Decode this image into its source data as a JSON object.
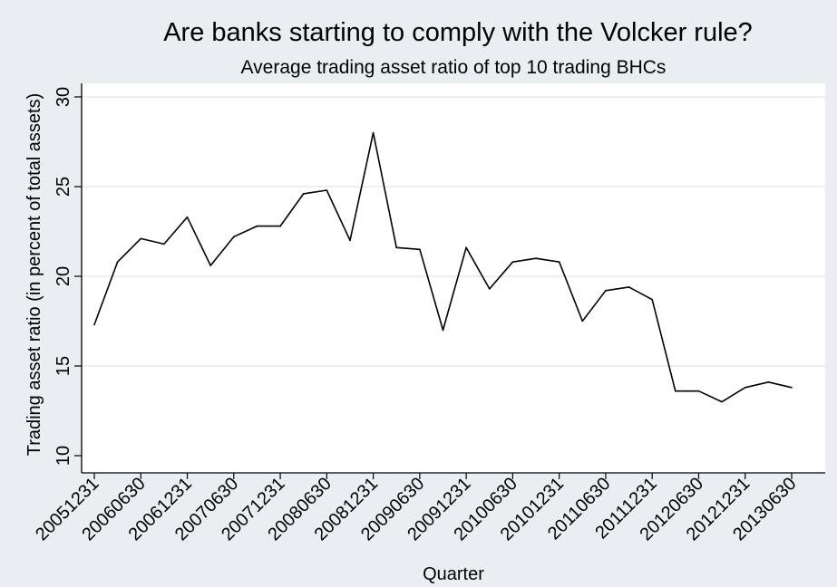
{
  "chart_data": {
    "type": "line",
    "title": "Are banks starting to comply with the Volcker rule?",
    "subtitle": "Average trading asset ratio of top 10 trading BHCs",
    "xlabel": "Quarter",
    "ylabel": "Trading asset ratio (in percent of total assets)",
    "ylim": [
      10,
      30
    ],
    "yticks": [
      "10",
      "15",
      "20",
      "25",
      "30"
    ],
    "grid": true,
    "x_tick_labels": [
      "20051231",
      "20060630",
      "20061231",
      "20070630",
      "20071231",
      "20080630",
      "20081231",
      "20090630",
      "20091231",
      "20100630",
      "20101231",
      "20110630",
      "20111231",
      "20120630",
      "20121231",
      "20130630"
    ],
    "x": [
      "20051231",
      "20060331",
      "20060630",
      "20060930",
      "20061231",
      "20070331",
      "20070630",
      "20070930",
      "20071231",
      "20080331",
      "20080630",
      "20080930",
      "20081231",
      "20090331",
      "20090630",
      "20090930",
      "20091231",
      "20100331",
      "20100630",
      "20100930",
      "20101231",
      "20110331",
      "20110630",
      "20110930",
      "20111231",
      "20120331",
      "20120630",
      "20120930",
      "20121231",
      "20130331",
      "20130630"
    ],
    "series": [
      {
        "values": [
          17.3,
          20.8,
          22.1,
          21.8,
          23.3,
          20.6,
          22.2,
          22.8,
          22.8,
          24.6,
          24.8,
          22.0,
          28.0,
          21.6,
          21.5,
          17.0,
          21.6,
          19.3,
          20.8,
          21.0,
          20.8,
          17.5,
          19.2,
          19.4,
          18.7,
          13.6,
          13.6,
          13.0,
          13.8,
          14.1,
          13.8
        ],
        "color": "#000000"
      }
    ],
    "colors": {
      "background": "#e9eef0",
      "plot_background": "#ffffff",
      "grid": "#e6ebed",
      "line": "#000000"
    }
  }
}
